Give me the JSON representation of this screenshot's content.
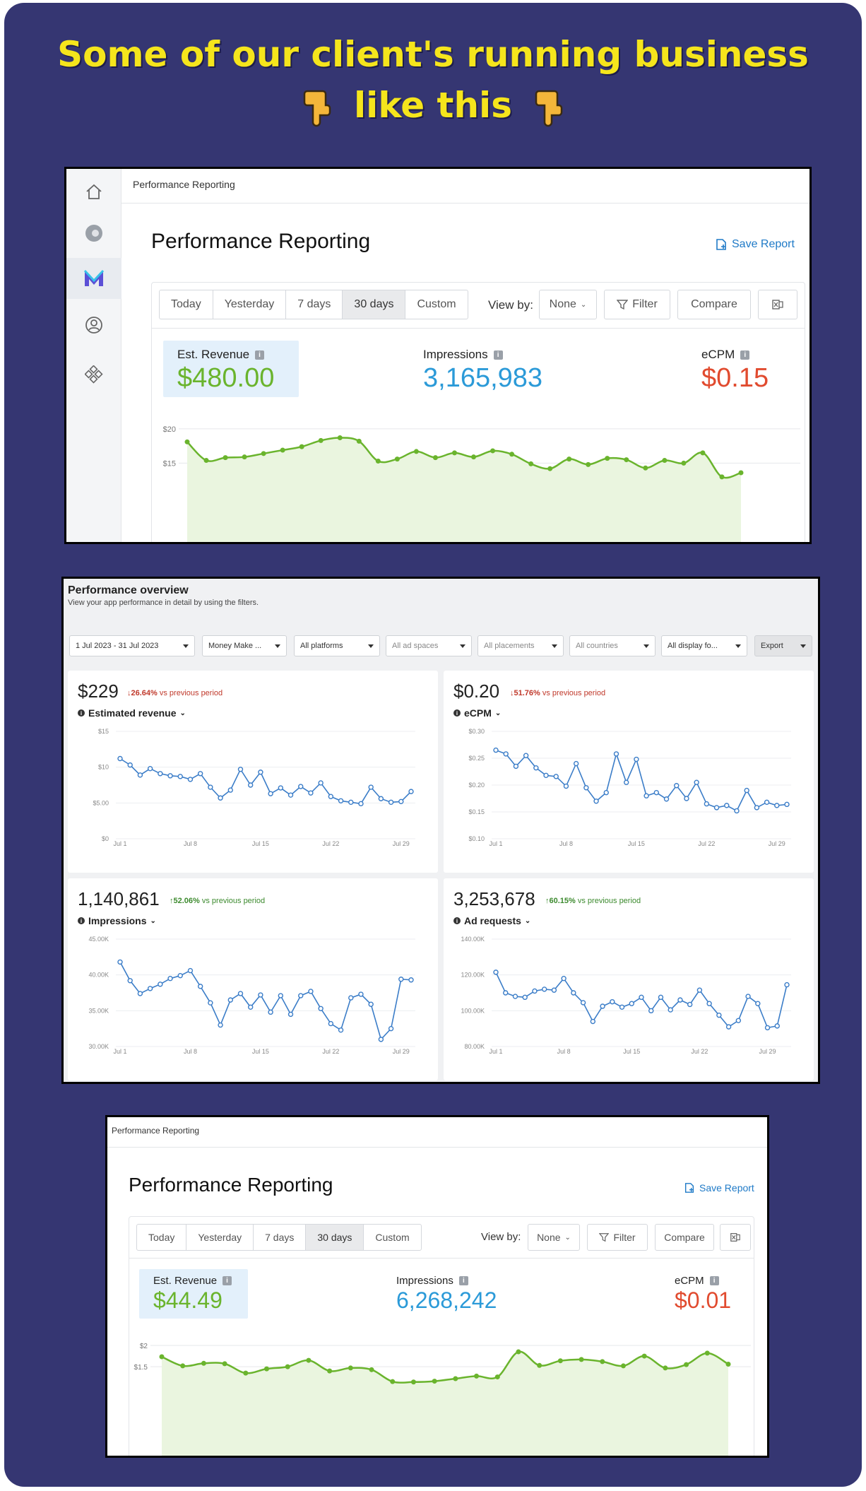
{
  "headline": {
    "line1": "Some of our client's running business",
    "line2": "like this"
  },
  "colors": {
    "background": "#353672",
    "headline": "#f5e51c",
    "revenue": "#6ab42d",
    "impressions": "#2b9ad8",
    "ecpm": "#e14b2f",
    "link": "#1f7ac7",
    "overview_line": "#3b7dc8"
  },
  "report1": {
    "breadcrumb": "Performance Reporting",
    "title": "Performance Reporting",
    "save_label": "Save Report",
    "ranges": [
      "Today",
      "Yesterday",
      "7 days",
      "30 days",
      "Custom"
    ],
    "selected_range": "30 days",
    "view_by_label": "View by:",
    "view_by_value": "None",
    "filter_label": "Filter",
    "compare_label": "Compare",
    "kpis": {
      "revenue_label": "Est. Revenue",
      "revenue_value": "$480.00",
      "impressions_label": "Impressions",
      "impressions_value": "3,165,983",
      "ecpm_label": "eCPM",
      "ecpm_value": "$0.15"
    },
    "chart_data": {
      "type": "area",
      "ytick_labels": [
        "$20",
        "$15"
      ],
      "ytick_values": [
        20,
        15
      ],
      "ylim": [
        13.5,
        20.5
      ],
      "values": [
        18.1,
        15.4,
        15.8,
        15.9,
        16.4,
        16.9,
        17.4,
        18.3,
        18.7,
        18.2,
        15.3,
        15.6,
        16.7,
        15.8,
        16.5,
        15.9,
        16.8,
        16.3,
        14.9,
        14.2,
        15.6,
        14.8,
        15.7,
        15.5,
        14.3,
        15.4,
        15.0,
        16.5,
        13.0,
        13.6
      ]
    }
  },
  "overview": {
    "title": "Performance overview",
    "subtitle": "View your app performance in detail by using the filters.",
    "filters": [
      "1 Jul 2023 - 31 Jul 2023",
      "Money Make ...",
      "All platforms",
      "All ad spaces",
      "All placements",
      "All countries",
      "All display fo...",
      "Export"
    ],
    "metrics": [
      {
        "value": "$229",
        "change": "26.64%",
        "change_suffix": "vs previous period",
        "direction": "down",
        "name": "Estimated revenue",
        "chart_data": {
          "type": "line",
          "ytick_labels": [
            "$15",
            "$10",
            "$5.00",
            "$0"
          ],
          "ylim": [
            0,
            15
          ],
          "xtick_labels": [
            "Jul 1",
            "Jul 8",
            "Jul 15",
            "Jul 22",
            "Jul 29"
          ],
          "values": [
            11.2,
            10.3,
            8.9,
            9.8,
            9.1,
            8.8,
            8.7,
            8.3,
            9.1,
            7.2,
            5.7,
            6.8,
            9.7,
            7.5,
            9.3,
            6.3,
            7.1,
            6.1,
            7.3,
            6.4,
            7.8,
            5.9,
            5.3,
            5.1,
            4.9,
            7.2,
            5.6,
            5.1,
            5.2,
            6.6
          ]
        }
      },
      {
        "value": "$0.20",
        "change": "51.76%",
        "change_suffix": "vs previous period",
        "direction": "down",
        "name": "eCPM",
        "chart_data": {
          "type": "line",
          "ytick_labels": [
            "$0.30",
            "$0.25",
            "$0.20",
            "$0.15",
            "$0.10"
          ],
          "ylim": [
            0.1,
            0.3
          ],
          "xtick_labels": [
            "Jul 1",
            "Jul 8",
            "Jul 15",
            "Jul 22",
            "Jul 29"
          ],
          "values": [
            0.265,
            0.258,
            0.235,
            0.255,
            0.232,
            0.218,
            0.216,
            0.198,
            0.24,
            0.195,
            0.17,
            0.186,
            0.258,
            0.205,
            0.248,
            0.18,
            0.186,
            0.174,
            0.199,
            0.175,
            0.205,
            0.165,
            0.158,
            0.162,
            0.152,
            0.19,
            0.158,
            0.168,
            0.162,
            0.164
          ]
        }
      },
      {
        "value": "1,140,861",
        "change": "52.06%",
        "change_suffix": "vs previous period",
        "direction": "up",
        "name": "Impressions",
        "chart_data": {
          "type": "line",
          "ytick_labels": [
            "45.00K",
            "40.00K",
            "35.00K",
            "30.00K"
          ],
          "ylim": [
            30000,
            45000
          ],
          "xtick_labels": [
            "Jul 1",
            "Jul 8",
            "Jul 15",
            "Jul 22",
            "Jul 29"
          ],
          "values": [
            41800,
            39200,
            37400,
            38100,
            38700,
            39500,
            39900,
            40600,
            38400,
            36100,
            33000,
            36500,
            37400,
            35500,
            37200,
            34800,
            37100,
            34500,
            37100,
            37700,
            35300,
            33200,
            32300,
            36800,
            37300,
            35900,
            31000,
            32500,
            39400,
            39300
          ]
        }
      },
      {
        "value": "3,253,678",
        "change": "60.15%",
        "change_suffix": "vs previous period",
        "direction": "up",
        "name": "Ad requests",
        "chart_data": {
          "type": "line",
          "ytick_labels": [
            "140.00K",
            "120.00K",
            "100.00K",
            "80.00K"
          ],
          "ylim": [
            80000,
            140000
          ],
          "xtick_labels": [
            "Jul 1",
            "Jul 8",
            "Jul 15",
            "Jul 22",
            "Jul 29"
          ],
          "values": [
            121500,
            110000,
            108000,
            107500,
            111000,
            112000,
            111500,
            118000,
            110000,
            104500,
            94000,
            102500,
            105000,
            102000,
            104000,
            107500,
            100000,
            107500,
            100500,
            106000,
            103500,
            111500,
            104000,
            97500,
            91000,
            94500,
            108000,
            104000,
            90500,
            91500,
            114500
          ]
        }
      }
    ]
  },
  "report2": {
    "breadcrumb": "Performance Reporting",
    "title": "Performance Reporting",
    "save_label": "Save Report",
    "ranges": [
      "Today",
      "Yesterday",
      "7 days",
      "30 days",
      "Custom"
    ],
    "selected_range": "30 days",
    "view_by_label": "View by:",
    "view_by_value": "None",
    "filter_label": "Filter",
    "compare_label": "Compare",
    "kpis": {
      "revenue_label": "Est. Revenue",
      "revenue_value": "$44.49",
      "impressions_label": "Impressions",
      "impressions_value": "6,268,242",
      "ecpm_label": "eCPM",
      "ecpm_value": "$0.01"
    },
    "chart_data": {
      "type": "area",
      "ytick_labels": [
        "$2",
        "$1.5"
      ],
      "ytick_values": [
        2,
        1.5
      ],
      "ylim": [
        1.07,
        2.1
      ],
      "values": [
        1.735,
        1.52,
        1.58,
        1.57,
        1.35,
        1.45,
        1.5,
        1.65,
        1.4,
        1.47,
        1.43,
        1.15,
        1.14,
        1.16,
        1.22,
        1.28,
        1.26,
        1.85,
        1.53,
        1.64,
        1.67,
        1.62,
        1.52,
        1.75,
        1.47,
        1.55,
        1.82,
        1.56
      ]
    }
  }
}
